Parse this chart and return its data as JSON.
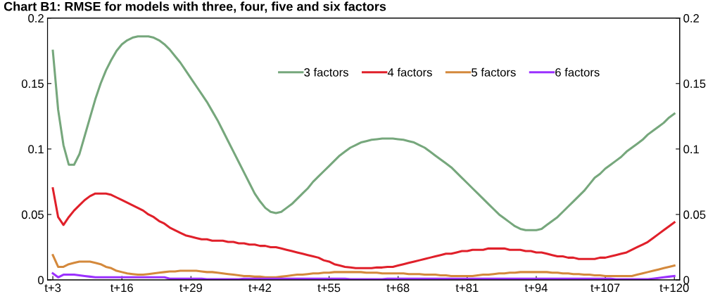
{
  "chart_data": {
    "type": "line",
    "title": "Chart B1: RMSE for models with three, four, five and six factors",
    "categories": [
      "t+3",
      null,
      null,
      null,
      null,
      null,
      null,
      null,
      null,
      null,
      null,
      null,
      null,
      "t+16",
      null,
      null,
      null,
      null,
      null,
      null,
      null,
      null,
      null,
      null,
      null,
      null,
      "t+29",
      null,
      null,
      null,
      null,
      null,
      null,
      null,
      null,
      null,
      null,
      null,
      null,
      "t+42",
      null,
      null,
      null,
      null,
      null,
      null,
      null,
      null,
      null,
      null,
      null,
      null,
      "t+55",
      null,
      null,
      null,
      null,
      null,
      null,
      null,
      null,
      null,
      null,
      null,
      null,
      "t+68",
      null,
      null,
      null,
      null,
      null,
      null,
      null,
      null,
      null,
      null,
      null,
      null,
      "t+81",
      null,
      null,
      null,
      null,
      null,
      null,
      null,
      null,
      null,
      null,
      null,
      null,
      "t+94",
      null,
      null,
      null,
      null,
      null,
      null,
      null,
      null,
      null,
      null,
      null,
      null,
      "t+107",
      null,
      null,
      null,
      null,
      null,
      null,
      null,
      null,
      null,
      null,
      null,
      null,
      "t+120"
    ],
    "ylim": [
      0,
      0.2
    ],
    "yticks": [
      0,
      0.05,
      0.1,
      0.15,
      0.2
    ],
    "y2lim": [
      0,
      0.2
    ],
    "y2ticks": [
      0,
      0.05,
      0.1,
      0.15,
      0.2
    ],
    "legend": "top",
    "line_style": "solid",
    "series": [
      {
        "name": "3 factors",
        "color": "#76a77c",
        "values": [
          0.175,
          0.13,
          0.103,
          0.088,
          0.088,
          0.096,
          0.11,
          0.124,
          0.138,
          0.15,
          0.16,
          0.168,
          0.175,
          0.18,
          0.183,
          0.185,
          0.186,
          0.186,
          0.186,
          0.185,
          0.183,
          0.18,
          0.176,
          0.171,
          0.166,
          0.16,
          0.154,
          0.148,
          0.142,
          0.136,
          0.129,
          0.122,
          0.114,
          0.106,
          0.098,
          0.09,
          0.082,
          0.074,
          0.066,
          0.06,
          0.055,
          0.052,
          0.051,
          0.052,
          0.055,
          0.058,
          0.062,
          0.066,
          0.07,
          0.075,
          0.079,
          0.083,
          0.087,
          0.091,
          0.095,
          0.098,
          0.101,
          0.103,
          0.105,
          0.106,
          0.107,
          0.1075,
          0.108,
          0.108,
          0.108,
          0.1075,
          0.107,
          0.106,
          0.105,
          0.103,
          0.101,
          0.098,
          0.095,
          0.092,
          0.089,
          0.086,
          0.082,
          0.078,
          0.074,
          0.07,
          0.066,
          0.062,
          0.058,
          0.054,
          0.05,
          0.047,
          0.044,
          0.041,
          0.039,
          0.038,
          0.038,
          0.038,
          0.039,
          0.042,
          0.045,
          0.048,
          0.052,
          0.056,
          0.06,
          0.064,
          0.068,
          0.073,
          0.078,
          0.081,
          0.085,
          0.088,
          0.091,
          0.094,
          0.098,
          0.101,
          0.104,
          0.107,
          0.111,
          0.114,
          0.117,
          0.12,
          0.124,
          0.127
        ]
      },
      {
        "name": "4 factors",
        "color": "#e0202a",
        "values": [
          0.07,
          0.048,
          0.042,
          0.048,
          0.053,
          0.057,
          0.061,
          0.064,
          0.066,
          0.066,
          0.066,
          0.065,
          0.063,
          0.061,
          0.059,
          0.057,
          0.055,
          0.053,
          0.05,
          0.048,
          0.045,
          0.043,
          0.04,
          0.038,
          0.036,
          0.034,
          0.033,
          0.032,
          0.031,
          0.031,
          0.03,
          0.03,
          0.03,
          0.029,
          0.029,
          0.028,
          0.028,
          0.027,
          0.027,
          0.026,
          0.026,
          0.025,
          0.025,
          0.024,
          0.023,
          0.022,
          0.021,
          0.02,
          0.019,
          0.018,
          0.017,
          0.015,
          0.014,
          0.012,
          0.011,
          0.01,
          0.0095,
          0.009,
          0.009,
          0.009,
          0.009,
          0.0095,
          0.0095,
          0.01,
          0.01,
          0.011,
          0.012,
          0.013,
          0.014,
          0.015,
          0.016,
          0.017,
          0.018,
          0.019,
          0.02,
          0.02,
          0.021,
          0.022,
          0.022,
          0.023,
          0.023,
          0.023,
          0.024,
          0.024,
          0.024,
          0.024,
          0.023,
          0.023,
          0.023,
          0.022,
          0.022,
          0.021,
          0.021,
          0.02,
          0.019,
          0.018,
          0.018,
          0.017,
          0.017,
          0.016,
          0.016,
          0.016,
          0.016,
          0.017,
          0.017,
          0.018,
          0.019,
          0.02,
          0.021,
          0.023,
          0.025,
          0.027,
          0.029,
          0.032,
          0.035,
          0.038,
          0.041,
          0.044
        ]
      },
      {
        "name": "5 factors",
        "color": "#d4893c",
        "values": [
          0.019,
          0.01,
          0.01,
          0.012,
          0.013,
          0.014,
          0.014,
          0.014,
          0.013,
          0.012,
          0.01,
          0.009,
          0.007,
          0.006,
          0.005,
          0.0045,
          0.004,
          0.004,
          0.0045,
          0.005,
          0.0055,
          0.006,
          0.0065,
          0.0065,
          0.007,
          0.007,
          0.007,
          0.007,
          0.0065,
          0.006,
          0.006,
          0.0055,
          0.005,
          0.0045,
          0.004,
          0.0035,
          0.003,
          0.003,
          0.0025,
          0.0025,
          0.002,
          0.002,
          0.002,
          0.0025,
          0.003,
          0.0035,
          0.004,
          0.004,
          0.0045,
          0.005,
          0.005,
          0.0055,
          0.0055,
          0.006,
          0.006,
          0.006,
          0.006,
          0.006,
          0.006,
          0.0055,
          0.0055,
          0.0055,
          0.005,
          0.005,
          0.005,
          0.005,
          0.005,
          0.0045,
          0.0045,
          0.0045,
          0.004,
          0.004,
          0.004,
          0.0035,
          0.0035,
          0.003,
          0.003,
          0.003,
          0.003,
          0.003,
          0.0035,
          0.004,
          0.004,
          0.0045,
          0.005,
          0.005,
          0.0055,
          0.0055,
          0.006,
          0.006,
          0.006,
          0.006,
          0.006,
          0.006,
          0.0055,
          0.0055,
          0.005,
          0.005,
          0.0045,
          0.0045,
          0.004,
          0.004,
          0.0035,
          0.0035,
          0.003,
          0.003,
          0.003,
          0.003,
          0.003,
          0.003,
          0.004,
          0.005,
          0.006,
          0.007,
          0.008,
          0.009,
          0.01,
          0.011
        ]
      },
      {
        "name": "6 factors",
        "color": "#9b30ff",
        "values": [
          0.005,
          0.002,
          0.004,
          0.004,
          0.004,
          0.0035,
          0.003,
          0.0025,
          0.002,
          0.002,
          0.002,
          0.002,
          0.002,
          0.002,
          0.002,
          0.002,
          0.002,
          0.002,
          0.002,
          0.002,
          0.002,
          0.002,
          0.001,
          0.001,
          0.001,
          0.001,
          0.001,
          0.001,
          0.001,
          0.0005,
          0.0005,
          0.0005,
          0.0005,
          0.0005,
          0.0005,
          0.0005,
          0.001,
          0.001,
          0.001,
          0.001,
          0.001,
          0.001,
          0.001,
          0.001,
          0.001,
          0.001,
          0.001,
          0.001,
          0.001,
          0.001,
          0.001,
          0.001,
          0.001,
          0.001,
          0.001,
          0.001,
          0.0005,
          0.0005,
          0.0005,
          0.0005,
          0.0005,
          0.0005,
          0.0005,
          0.001,
          0.001,
          0.001,
          0.001,
          0.001,
          0.001,
          0.001,
          0.001,
          0.001,
          0.001,
          0.001,
          0.001,
          0.001,
          0.001,
          0.001,
          0.001,
          0.001,
          0.001,
          0.001,
          0.001,
          0.001,
          0.001,
          0.001,
          0.001,
          0.001,
          0.001,
          0.001,
          0.001,
          0.001,
          0.001,
          0.001,
          0.001,
          0.001,
          0.001,
          0.001,
          0.001,
          0.001,
          0.001,
          0.001,
          0.001,
          0.001,
          0.001,
          0.001,
          0.0005,
          0.0005,
          0.0005,
          0.0005,
          0.0005,
          0.0005,
          0.0005,
          0.001,
          0.0015,
          0.002,
          0.0025,
          0.003
        ]
      }
    ]
  }
}
